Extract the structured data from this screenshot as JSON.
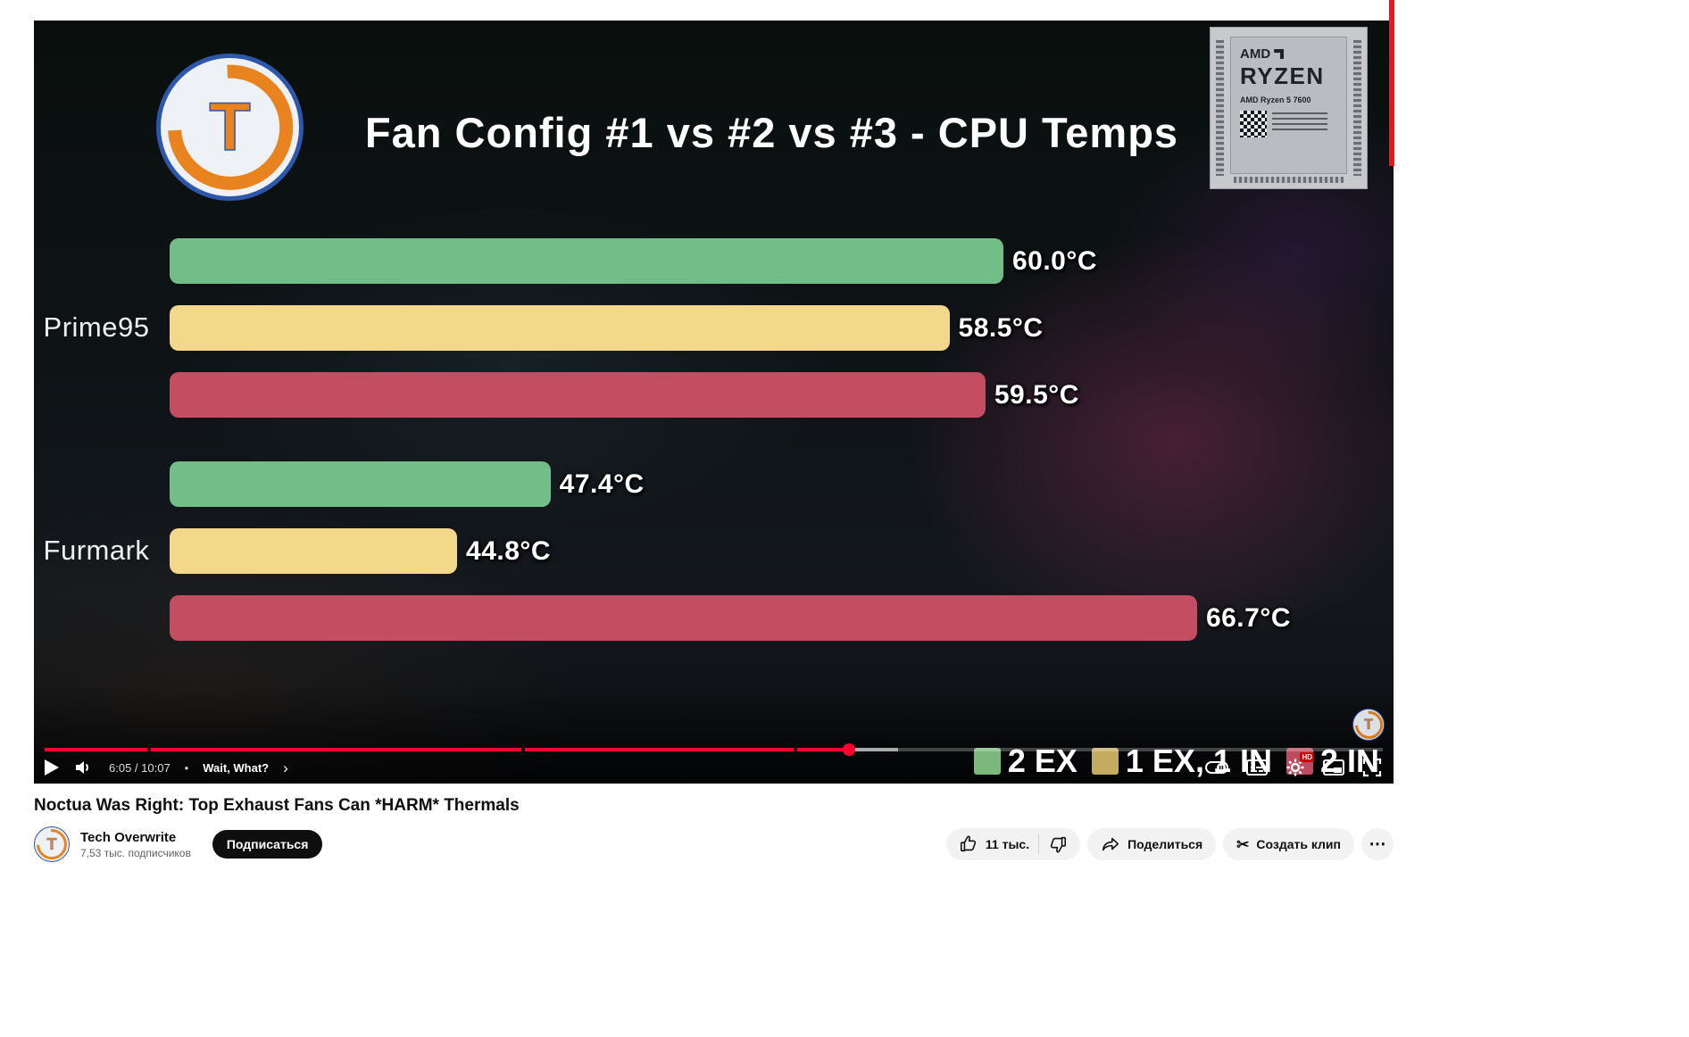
{
  "page": {
    "video_title": "Noctua Was Right: Top Exhaust Fans Can *HARM* Thermals"
  },
  "branding": {
    "logo_letter": "T"
  },
  "player": {
    "time_display": "6:05 / 10:07",
    "chapter": "Wait, What?",
    "hd_badge": "HD",
    "progress_percent": 60.1,
    "buffer_percent": 63.8,
    "chapter_markers_percent": [
      7.7,
      35.6,
      56.0
    ]
  },
  "chart_data": {
    "type": "bar",
    "orientation": "horizontal",
    "title": "Fan Config #1 vs #2 vs #3 - CPU Temps",
    "categories": [
      "Prime95",
      "Furmark"
    ],
    "series": [
      {
        "name": "2 EX",
        "color": "#72bd88",
        "values": [
          60.0,
          47.4
        ]
      },
      {
        "name": "1 EX, 1 IN",
        "color": "#f3d78a",
        "values": [
          58.5,
          44.8
        ]
      },
      {
        "name": "2 IN",
        "color": "#c44e61",
        "values": [
          59.5,
          66.7
        ]
      }
    ],
    "legend_colors": [
      "#7ab87c",
      "#c4ab62",
      "#bd4a5e"
    ],
    "unit": "°C",
    "xlim": [
      36.8,
      68
    ],
    "grid": false,
    "legend_position": "bottom-right"
  },
  "ryzen_chip": {
    "brand": "AMD",
    "line": "RYZEN",
    "model": "AMD Ryzen 5 7600"
  },
  "channel": {
    "name": "Tech Overwrite",
    "subscribers": "7,53 тыс. подписчиков",
    "subscribe_label": "Подписаться"
  },
  "actions": {
    "like_label": "11 тыс.",
    "share_label": "Поделиться",
    "clip_label": "Создать клип"
  },
  "icons": {
    "more_glyph": "⋯",
    "scissors_glyph": "✂",
    "chevron_right": "›",
    "dot_separator": "•"
  }
}
